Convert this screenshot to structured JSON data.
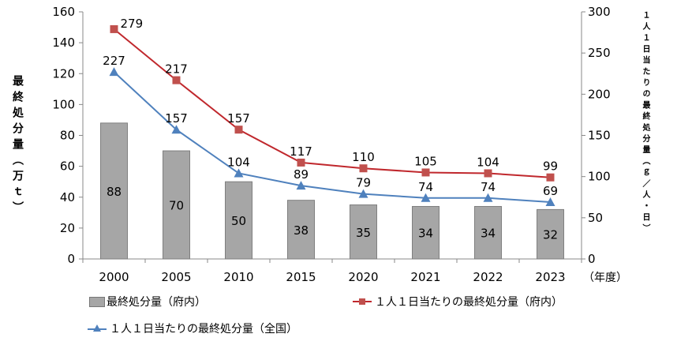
{
  "chart_data": {
    "type": "bar+line",
    "categories": [
      "2000",
      "2005",
      "2010",
      "2015",
      "2020",
      "2021",
      "2022",
      "2023"
    ],
    "x_unit_label": "（年度）",
    "ylabel_left": "最終処分量（万ｔ）",
    "ylabel_right": "１人１日当たりの最終処分量（ｇ／人・日）",
    "ylim_left": [
      0,
      160
    ],
    "yticks_left": [
      0,
      20,
      40,
      60,
      80,
      100,
      120,
      140,
      160
    ],
    "ylim_right": [
      0,
      300
    ],
    "yticks_right": [
      0,
      50,
      100,
      150,
      200,
      250,
      300
    ],
    "grid": false,
    "legend_placement": "bottom",
    "series": [
      {
        "name": "最終処分量（府内）",
        "type": "bar",
        "axis": "left",
        "color": "#a6a6a6",
        "values": [
          88,
          70,
          50,
          38,
          35,
          34,
          34,
          32
        ]
      },
      {
        "name": "１人１日当たりの最終処分量（府内）",
        "type": "line",
        "marker": "square",
        "axis": "right",
        "color": "#c0282d",
        "marker_color": "#c0504d",
        "values": [
          279,
          217,
          157,
          117,
          110,
          105,
          104,
          99
        ]
      },
      {
        "name": "１人１日当たりの最終処分量（全国）",
        "type": "line",
        "marker": "triangle",
        "axis": "right",
        "color": "#4f81bd",
        "values": [
          227,
          157,
          104,
          89,
          79,
          74,
          74,
          69
        ]
      }
    ]
  }
}
